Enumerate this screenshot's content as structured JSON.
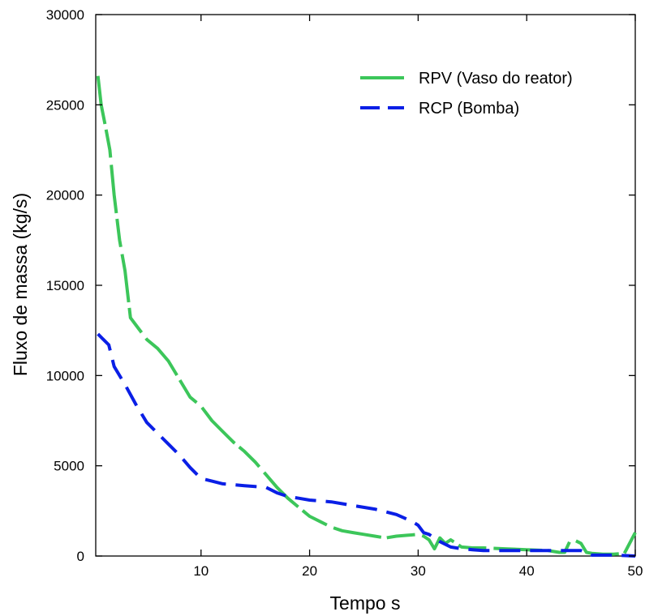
{
  "chart_data": {
    "type": "line",
    "title": "",
    "xlabel": "Tempo s",
    "ylabel": "Fluxo de massa (kg/s)",
    "xlim": [
      0.3,
      50
    ],
    "ylim": [
      0,
      30000
    ],
    "x_ticks": [
      10,
      20,
      30,
      40,
      50
    ],
    "y_ticks": [
      0,
      5000,
      10000,
      15000,
      20000,
      25000,
      30000
    ],
    "x_tick_labels": [
      "10",
      "20",
      "30",
      "40",
      "50"
    ],
    "y_tick_labels": [
      "0",
      "5000",
      "10000",
      "15000",
      "20000",
      "25000",
      "30000"
    ],
    "grid": false,
    "legend_position": "top-right",
    "series": [
      {
        "name": "RPV (Vaso do reator)",
        "color": "#3cc65a",
        "style": "solid-with-gaps",
        "x": [
          0.5,
          0.8,
          1.2,
          1.6,
          2.0,
          2.5,
          3.0,
          3.5,
          4.0,
          5.0,
          6.0,
          7.0,
          8.0,
          9.0,
          10.0,
          11.0,
          12.0,
          13.0,
          14.0,
          15.0,
          16.0,
          17.0,
          18.0,
          19.0,
          20.0,
          21.0,
          22.0,
          23.0,
          24.0,
          25.0,
          26.0,
          27.0,
          28.0,
          29.0,
          30.0,
          30.5,
          31.0,
          31.5,
          32.0,
          32.5,
          33.0,
          33.5,
          34.0,
          35.0,
          36.0,
          38.0,
          40.0,
          42.0,
          43.0,
          43.5,
          44.0,
          44.5,
          45.0,
          45.5,
          46.0,
          47.0,
          48.0,
          49.0,
          50.0
        ],
        "y": [
          26600,
          25000,
          23800,
          22500,
          20000,
          17500,
          15800,
          13200,
          12800,
          12000,
          11500,
          10800,
          9800,
          8800,
          8300,
          7500,
          6900,
          6300,
          5800,
          5200,
          4500,
          3800,
          3200,
          2700,
          2200,
          1900,
          1600,
          1400,
          1300,
          1200,
          1100,
          1000,
          1100,
          1150,
          1200,
          1100,
          900,
          400,
          1000,
          700,
          900,
          700,
          500,
          450,
          450,
          400,
          350,
          300,
          200,
          200,
          850,
          850,
          700,
          200,
          150,
          100,
          100,
          150,
          1300
        ]
      },
      {
        "name": "RCP (Bomba)",
        "color": "#0a1fe6",
        "style": "dashed",
        "x": [
          0.5,
          1.0,
          1.5,
          2.0,
          3.0,
          4.0,
          5.0,
          6.0,
          7.0,
          8.0,
          9.0,
          10.0,
          11.0,
          12.0,
          13.0,
          14.0,
          15.0,
          16.0,
          17.0,
          18.0,
          19.0,
          20.0,
          22.0,
          24.0,
          26.0,
          28.0,
          29.5,
          30.0,
          30.5,
          31.0,
          32.0,
          33.0,
          34.0,
          35.0,
          36.0,
          38.0,
          40.0,
          42.0,
          43.0,
          44.0,
          45.0,
          46.0,
          48.0,
          50.0
        ],
        "y": [
          12300,
          12000,
          11700,
          10500,
          9500,
          8400,
          7400,
          6800,
          6200,
          5600,
          4900,
          4300,
          4150,
          4000,
          3950,
          3900,
          3850,
          3800,
          3500,
          3300,
          3200,
          3100,
          3000,
          2800,
          2600,
          2300,
          1900,
          1700,
          1300,
          1200,
          800,
          500,
          400,
          350,
          300,
          300,
          300,
          300,
          300,
          300,
          300,
          50,
          50,
          0
        ]
      }
    ]
  }
}
